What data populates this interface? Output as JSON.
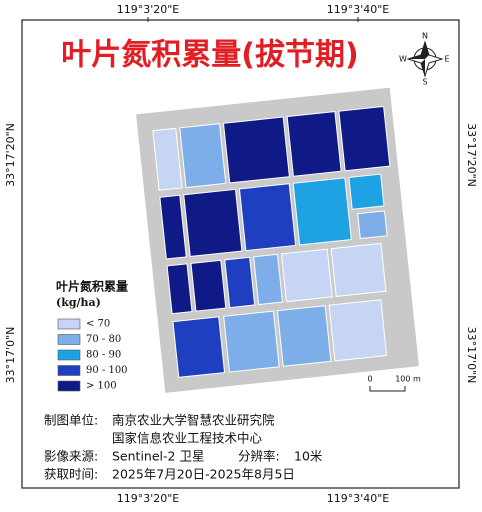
{
  "title": "叶片氮积累量(拔节期)",
  "coordinates": {
    "top": [
      "119°3'20\"E",
      "119°3'40\"E"
    ],
    "bottom": [
      "119°3'20\"E",
      "119°3'40\"E"
    ],
    "left": [
      "33°17'20\"N",
      "33°17'0\"N"
    ],
    "right": [
      "33°17'20\"N",
      "33°17'0\"N"
    ]
  },
  "compass": {
    "n": "N",
    "s": "S",
    "w": "W",
    "e": "E"
  },
  "legend": {
    "title": "叶片氮积累量",
    "unit": "(kg/ha)",
    "items": [
      {
        "label": "< 70",
        "color": "#c7d5f5"
      },
      {
        "label": "70 - 80",
        "color": "#7eaeea"
      },
      {
        "label": "80 - 90",
        "color": "#1ea2e4"
      },
      {
        "label": "90 - 100",
        "color": "#1e3fc0"
      },
      {
        "label": "> 100",
        "color": "#0f1a86"
      }
    ]
  },
  "scale_bar": {
    "start": "0",
    "end": "100 m"
  },
  "info": {
    "unit_label": "制图单位:",
    "unit_lines": [
      "南京农业大学智慧农业研究院",
      "国家信息农业工程技术中心"
    ],
    "source_label": "影像来源:",
    "source": "Sentinel-2 卫星",
    "resolution_label": "分辨率:",
    "resolution": "10米",
    "time_label": "获取时间:",
    "time": "2025年7月20日-2025年8月5日"
  }
}
